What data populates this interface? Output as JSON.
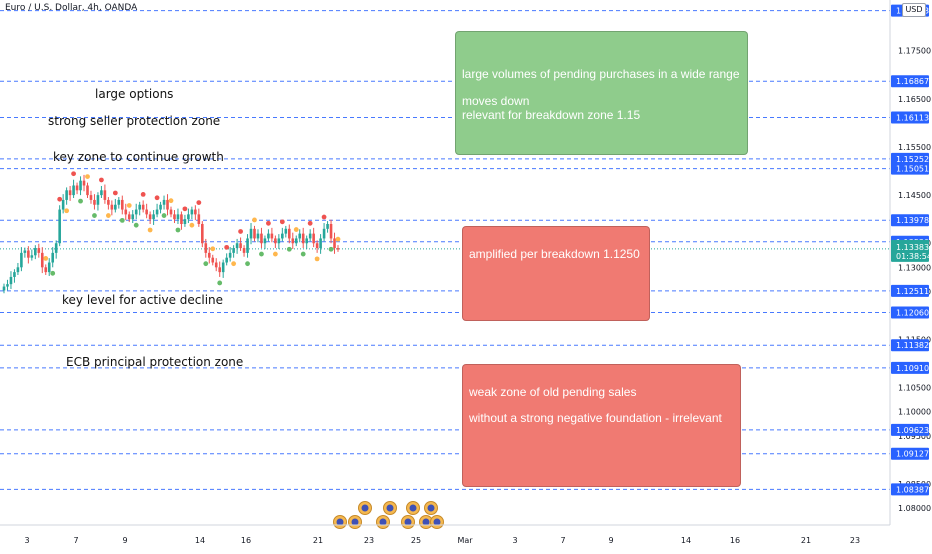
{
  "header": {
    "title": "Euro / U.S. Dollar, 4h, OANDA",
    "currency": "USD"
  },
  "price_axis": {
    "labels": [
      "1.17500",
      "1.16500",
      "1.15500",
      "1.14500",
      "1.13500",
      "1.13000",
      "1.12500",
      "1.11500",
      "1.10500",
      "1.10000",
      "1.09500",
      "1.08500",
      "1.08000"
    ],
    "level_tags": [
      "1.18333",
      "1.16867",
      "1.16113",
      "1.15252",
      "1.15051",
      "1.13978",
      "1.13530",
      "1.12511",
      "1.12060",
      "1.11382",
      "1.10910",
      "1.09623",
      "1.09127",
      "1.08387"
    ],
    "last_price": "1.13383",
    "countdown": "01:38:54"
  },
  "time_axis": {
    "labels": [
      "3",
      "7",
      "9",
      "14",
      "16",
      "21",
      "23",
      "25",
      "Mar",
      "3",
      "7",
      "9",
      "14",
      "16",
      "21",
      "23"
    ]
  },
  "annotations": {
    "large_options": "large options",
    "strong_seller": "strong seller protection zone",
    "key_zone_growth": "key zone to continue growth",
    "key_level_decline": "key level for active decline",
    "ecb_zone": "ECB principal protection zone"
  },
  "notes": {
    "green": {
      "line1": "large volumes of pending purchases in a wide range",
      "line2": "moves down",
      "line3": "relevant for breakdown zone 1.15"
    },
    "red1": {
      "line1": "amplified per breakdown 1.1250"
    },
    "red2": {
      "line1": "weak  zone of old pending sales",
      "line2": "without a strong negative foundation - irrelevant"
    }
  },
  "colors": {
    "level_line": "#2962ff",
    "up": "#26a69a",
    "down": "#ef5350",
    "green_note": "#8fcc8c",
    "red_note": "#f07a72",
    "dot_green": "#66bb6a",
    "dot_red": "#ef5350",
    "dot_orange": "#ffb74d"
  },
  "chart_data": {
    "type": "candlestick",
    "title": "Euro / U.S. Dollar, 4h, OANDA",
    "y_range": [
      1.0775,
      1.1845
    ],
    "levels": [
      1.18333,
      1.16867,
      1.16113,
      1.15252,
      1.15051,
      1.13978,
      1.1353,
      1.12511,
      1.1206,
      1.11382,
      1.1091,
      1.09623,
      1.09127,
      1.08387
    ],
    "last_price": 1.13383,
    "closes": [
      1.126,
      1.1265,
      1.128,
      1.129,
      1.13,
      1.133,
      1.1335,
      1.132,
      1.1325,
      1.134,
      1.133,
      1.13,
      1.129,
      1.131,
      1.133,
      1.135,
      1.142,
      1.144,
      1.146,
      1.145,
      1.147,
      1.146,
      1.148,
      1.147,
      1.145,
      1.144,
      1.143,
      1.145,
      1.146,
      1.144,
      1.143,
      1.142,
      1.143,
      1.144,
      1.142,
      1.141,
      1.14,
      1.141,
      1.142,
      1.143,
      1.142,
      1.141,
      1.14,
      1.141,
      1.142,
      1.143,
      1.144,
      1.142,
      1.141,
      1.14,
      1.141,
      1.139,
      1.14,
      1.141,
      1.142,
      1.141,
      1.139,
      1.135,
      1.133,
      1.132,
      1.131,
      1.13,
      1.129,
      1.131,
      1.132,
      1.133,
      1.134,
      1.135,
      1.134,
      1.133,
      1.136,
      1.138,
      1.136,
      1.137,
      1.135,
      1.136,
      1.137,
      1.136,
      1.135,
      1.136,
      1.137,
      1.138,
      1.136,
      1.135,
      1.136,
      1.137,
      1.135,
      1.136,
      1.137,
      1.135,
      1.134,
      1.136,
      1.138,
      1.139,
      1.136,
      1.134,
      1.1338
    ]
  }
}
